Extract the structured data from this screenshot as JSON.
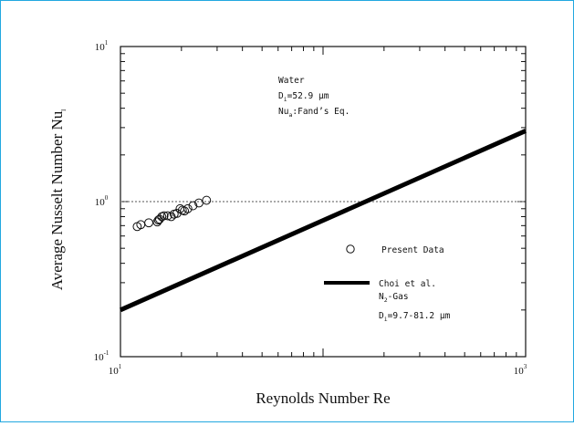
{
  "chart_data": {
    "type": "scatter",
    "title": "",
    "xlabel": "Reynolds Number Re",
    "ylabel": "Average Nusselt Number Nu",
    "ylabel_subscript": "l",
    "xscale": "log",
    "yscale": "log",
    "xlim": [
      10,
      1000
    ],
    "ylim": [
      0.1,
      10
    ],
    "x_ticks": [
      {
        "value": 10,
        "base": "10",
        "exp": "1"
      },
      {
        "value": 1000,
        "base": "10",
        "exp": "3"
      }
    ],
    "y_ticks": [
      {
        "value": 0.1,
        "base": "10",
        "exp": "-1"
      },
      {
        "value": 1,
        "base": "10",
        "exp": "0"
      },
      {
        "value": 10,
        "base": "10",
        "exp": "1"
      }
    ],
    "reference_line_y": 1,
    "legend_placement": "inside-right",
    "annotation": {
      "line1": "Water",
      "line2_a": "D",
      "line2_sub": "i",
      "line2_b": "=52.9 µm",
      "line3_a": "Nu",
      "line3_sub": "a",
      "line3_b": ":Fand’s Eq."
    },
    "series": [
      {
        "name": "Present Data",
        "kind": "scatter",
        "marker": "open-circle",
        "x": [
          12.1,
          12.6,
          13.8,
          15.2,
          15.4,
          15.6,
          16.0,
          16.4,
          17.1,
          17.8,
          18.4,
          19.0,
          19.7,
          20.2,
          20.7,
          21.5,
          22.8,
          24.4,
          26.6
        ],
        "y": [
          0.69,
          0.71,
          0.73,
          0.74,
          0.76,
          0.77,
          0.8,
          0.81,
          0.81,
          0.8,
          0.83,
          0.84,
          0.9,
          0.88,
          0.87,
          0.9,
          0.94,
          0.98,
          1.02
        ]
      },
      {
        "name": "Choi et al.",
        "name_line2_a": "N",
        "name_line2_sub": "2",
        "name_line2_b": "-Gas",
        "name_line3_a": "D",
        "name_line3_sub": "i",
        "name_line3_b": "=9.7-81.2 µm",
        "kind": "line",
        "x": [
          10,
          1000
        ],
        "y": [
          0.2,
          2.86
        ]
      }
    ]
  }
}
